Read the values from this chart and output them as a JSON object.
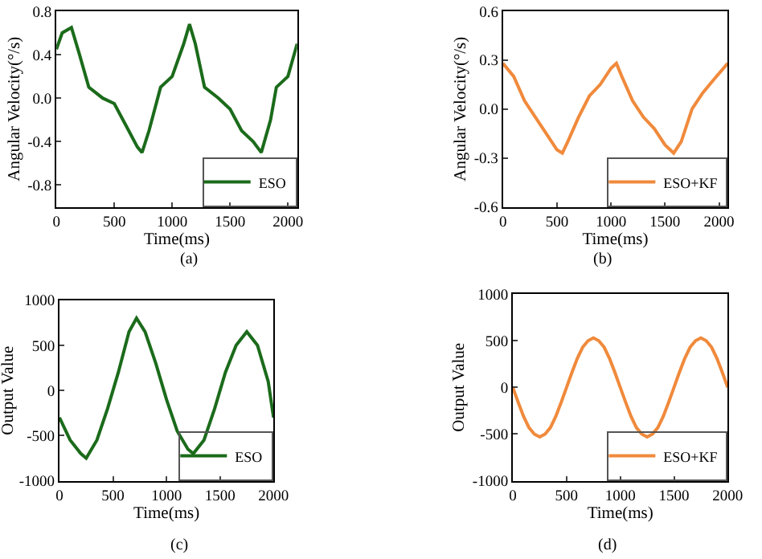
{
  "chart_data": [
    {
      "type": "line",
      "xlabel": "Time(ms)",
      "ylabel": "Angular Velocity(°/s)",
      "annotations": [
        "(a)"
      ],
      "legend": "bottom right",
      "grid": false,
      "xlim": [
        0,
        2080
      ],
      "xticks": [
        0,
        500,
        1000,
        1500,
        2000
      ],
      "ylim": [
        -1,
        0.8
      ],
      "yticks": [
        {
          "value": -0.8,
          "label": "-0.8"
        },
        {
          "value": -0.4,
          "label": "-0.4"
        },
        {
          "value": 0,
          "label": "0.0"
        },
        {
          "value": 0.4,
          "label": "0.4"
        },
        {
          "value": 0.8,
          "label": "0.8"
        }
      ],
      "x": [
        0,
        50,
        130,
        200,
        280,
        400,
        500,
        600,
        700,
        740,
        800,
        900,
        1000,
        1100,
        1150,
        1200,
        1280,
        1400,
        1500,
        1600,
        1700,
        1770,
        1850,
        1900,
        2000,
        2080
      ],
      "series": [
        {
          "name": "ESO",
          "color": "#1b6b1b",
          "values": [
            0.45,
            0.6,
            0.65,
            0.4,
            0.1,
            0.0,
            -0.05,
            -0.25,
            -0.45,
            -0.5,
            -0.3,
            0.1,
            0.2,
            0.5,
            0.68,
            0.5,
            0.1,
            0.0,
            -0.1,
            -0.3,
            -0.4,
            -0.5,
            -0.2,
            0.1,
            0.2,
            0.5
          ]
        }
      ]
    },
    {
      "type": "line",
      "xlabel": "Time(ms)",
      "ylabel": "Angular Velocity(°/s)",
      "annotations": [
        "(b)"
      ],
      "legend": "bottom right",
      "grid": false,
      "xlim": [
        0,
        2080
      ],
      "xticks": [
        0,
        500,
        1000,
        1500,
        2000
      ],
      "ylim": [
        -0.6,
        0.6
      ],
      "yticks": [
        {
          "value": -0.6,
          "label": "-0.6"
        },
        {
          "value": -0.3,
          "label": "-0.3"
        },
        {
          "value": 0,
          "label": "0.0"
        },
        {
          "value": 0.3,
          "label": "0.3"
        },
        {
          "value": 0.6,
          "label": "0.6"
        }
      ],
      "x": [
        0,
        100,
        200,
        300,
        400,
        500,
        550,
        600,
        700,
        800,
        900,
        1000,
        1050,
        1100,
        1200,
        1300,
        1400,
        1500,
        1580,
        1650,
        1750,
        1850,
        1950,
        2080
      ],
      "series": [
        {
          "name": "ESO+KF",
          "color": "#f08a3c",
          "values": [
            0.28,
            0.2,
            0.05,
            -0.05,
            -0.15,
            -0.25,
            -0.27,
            -0.2,
            -0.05,
            0.08,
            0.15,
            0.25,
            0.28,
            0.2,
            0.05,
            -0.05,
            -0.12,
            -0.22,
            -0.27,
            -0.2,
            0.0,
            0.1,
            0.18,
            0.28
          ]
        }
      ]
    },
    {
      "type": "line",
      "xlabel": "Time(ms)",
      "ylabel": "Output Value",
      "annotations": [
        "(c)"
      ],
      "legend": "bottom right",
      "grid": false,
      "xlim": [
        0,
        2000
      ],
      "xticks": [
        0,
        500,
        1000,
        1500,
        2000
      ],
      "ylim": [
        -1000,
        1000
      ],
      "yticks": [
        -1000,
        -500,
        0,
        500,
        1000
      ],
      "x": [
        0,
        100,
        200,
        250,
        350,
        450,
        550,
        650,
        720,
        800,
        900,
        1000,
        1100,
        1200,
        1250,
        1350,
        1450,
        1550,
        1650,
        1750,
        1850,
        1950,
        2000
      ],
      "series": [
        {
          "name": "ESO",
          "color": "#1b6b1b",
          "values": [
            -300,
            -550,
            -700,
            -750,
            -550,
            -200,
            200,
            650,
            800,
            650,
            300,
            -100,
            -450,
            -650,
            -700,
            -550,
            -200,
            200,
            500,
            650,
            500,
            100,
            -300
          ]
        }
      ]
    },
    {
      "type": "line",
      "xlabel": "Time(ms)",
      "ylabel": "Output Value",
      "annotations": [
        "(d)"
      ],
      "legend": "bottom right",
      "grid": false,
      "xlim": [
        0,
        2000
      ],
      "xticks": [
        0,
        500,
        1000,
        1500,
        2000
      ],
      "ylim": [
        -1000,
        1000
      ],
      "yticks": [
        -1000,
        -500,
        0,
        500,
        1000
      ],
      "x": [
        0,
        50,
        100,
        150,
        200,
        250,
        300,
        350,
        400,
        450,
        500,
        550,
        600,
        650,
        700,
        750,
        800,
        850,
        900,
        950,
        1000,
        1050,
        1100,
        1150,
        1200,
        1250,
        1300,
        1350,
        1400,
        1450,
        1500,
        1550,
        1600,
        1650,
        1700,
        1750,
        1800,
        1850,
        1900,
        1950,
        2000
      ],
      "series": [
        {
          "name": "ESO+KF",
          "color": "#f08a3c",
          "values": [
            0,
            -160,
            -310,
            -430,
            -500,
            -530,
            -500,
            -430,
            -310,
            -160,
            0,
            160,
            310,
            430,
            500,
            530,
            500,
            430,
            310,
            160,
            0,
            -160,
            -310,
            -430,
            -500,
            -530,
            -500,
            -430,
            -310,
            -160,
            0,
            160,
            310,
            430,
            500,
            530,
            500,
            430,
            310,
            160,
            0
          ]
        }
      ]
    }
  ]
}
